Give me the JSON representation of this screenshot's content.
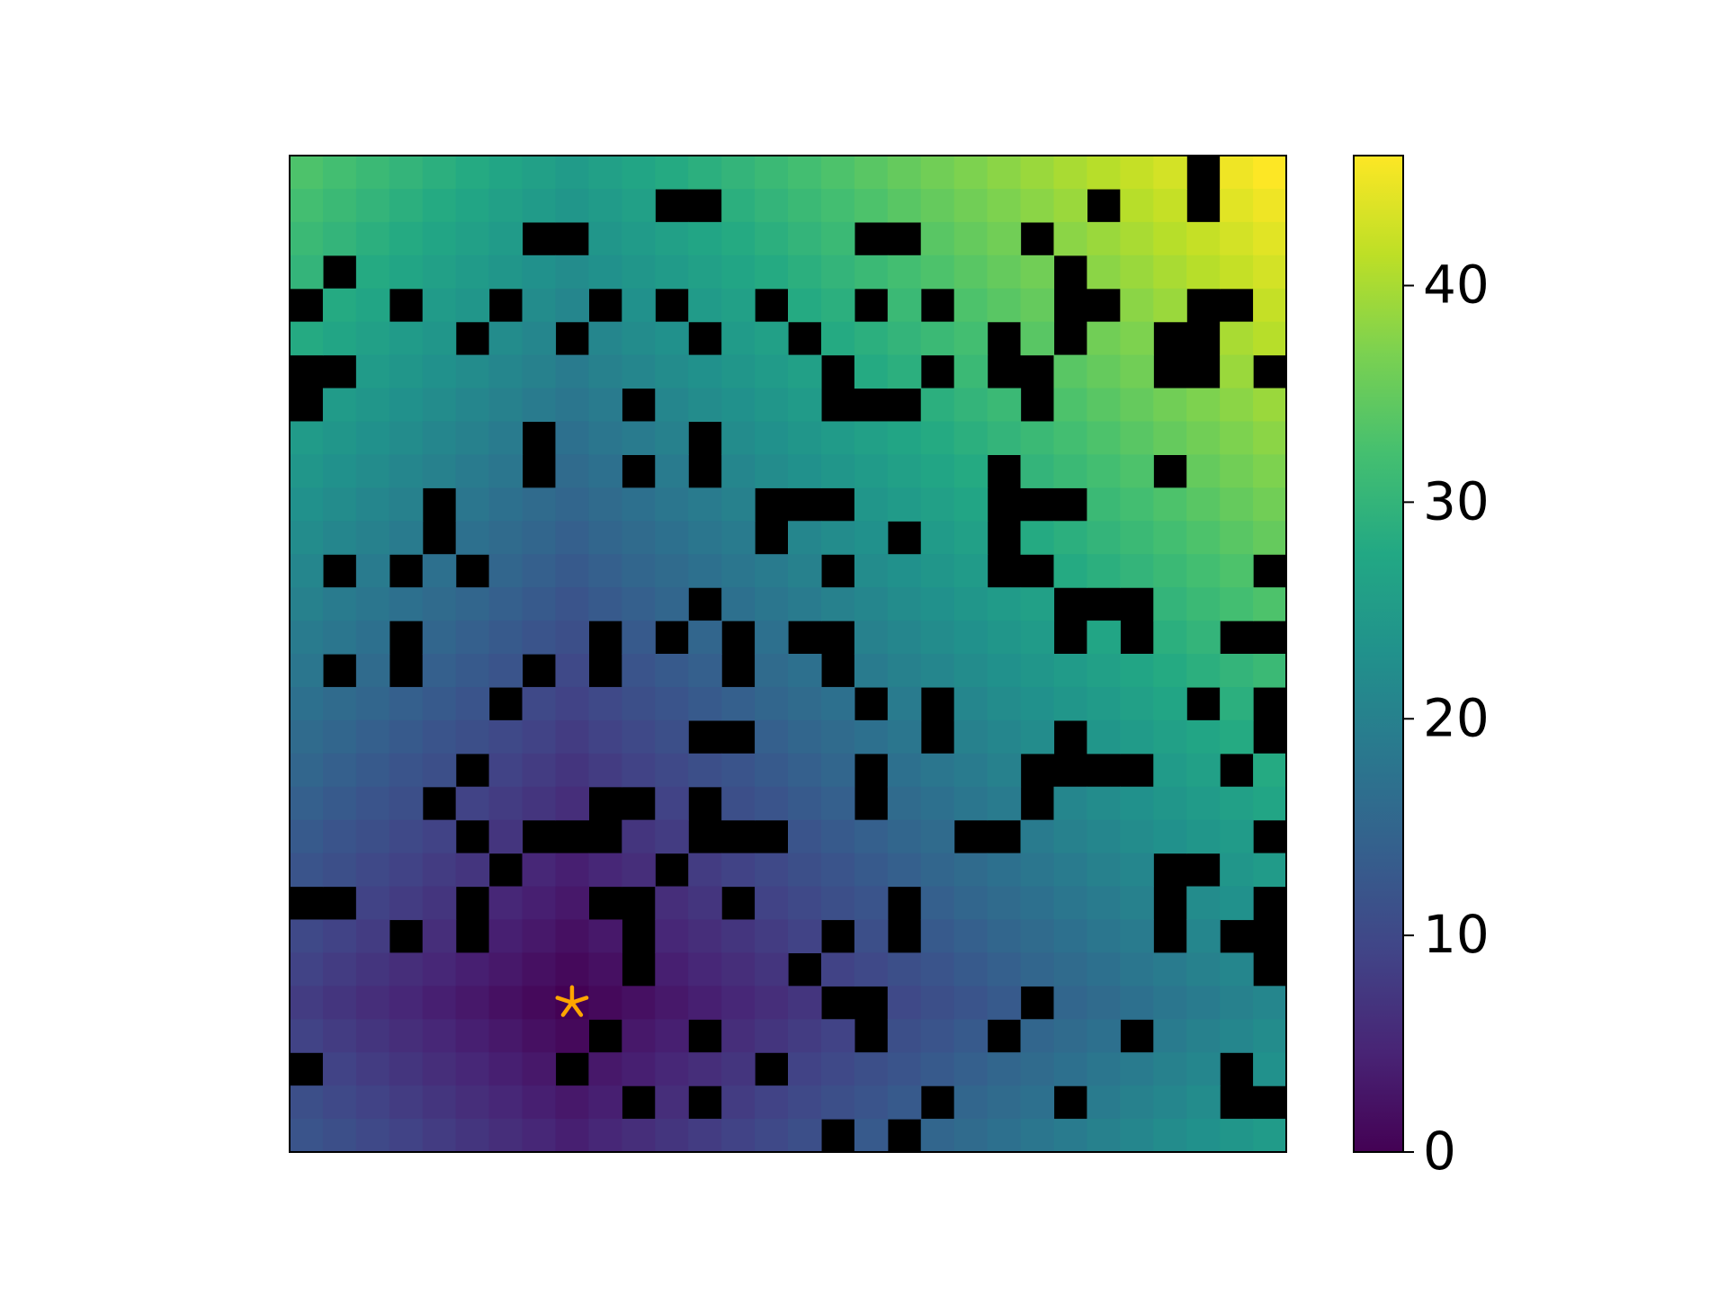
{
  "chart_data": {
    "type": "heatmap",
    "colormap": "viridis",
    "obstacle_color": "#000000",
    "clim": [
      0,
      46
    ],
    "cticks": [
      0,
      10,
      20,
      30,
      40
    ],
    "marker": {
      "row": 25,
      "col": 8,
      "color": "#ffa500"
    },
    "z": [
      [
        33,
        32,
        31,
        30,
        29,
        28,
        27,
        26,
        25,
        26,
        27,
        28,
        29,
        30,
        31,
        32,
        33,
        34,
        35,
        36,
        37,
        38,
        39,
        40,
        41,
        42,
        43,
        null,
        45,
        46
      ],
      [
        32,
        31,
        30,
        29,
        28,
        27,
        26,
        25,
        24,
        25,
        26,
        null,
        null,
        29,
        30,
        31,
        32,
        33,
        34,
        35,
        36,
        37,
        38,
        39,
        null,
        41,
        42,
        null,
        44,
        45
      ],
      [
        31,
        30,
        29,
        28,
        27,
        26,
        25,
        null,
        null,
        24,
        25,
        26,
        27,
        28,
        29,
        30,
        31,
        null,
        null,
        34,
        35,
        36,
        null,
        38,
        39,
        40,
        41,
        42,
        43,
        44
      ],
      [
        30,
        null,
        28,
        27,
        26,
        25,
        24,
        23,
        22,
        23,
        24,
        25,
        26,
        27,
        28,
        29,
        30,
        31,
        32,
        33,
        34,
        35,
        36,
        null,
        38,
        39,
        40,
        41,
        42,
        43
      ],
      [
        null,
        28,
        27,
        null,
        25,
        24,
        null,
        22,
        21,
        null,
        23,
        null,
        25,
        26,
        null,
        28,
        29,
        null,
        31,
        null,
        33,
        34,
        35,
        null,
        null,
        38,
        39,
        null,
        null,
        42
      ],
      [
        28,
        27,
        26,
        25,
        24,
        null,
        22,
        21,
        null,
        21,
        22,
        23,
        null,
        25,
        26,
        null,
        28,
        29,
        30,
        31,
        32,
        null,
        34,
        null,
        36,
        37,
        null,
        null,
        40,
        41
      ],
      [
        null,
        null,
        25,
        24,
        23,
        22,
        21,
        20,
        19,
        20,
        21,
        22,
        23,
        24,
        25,
        26,
        null,
        28,
        29,
        null,
        31,
        null,
        null,
        34,
        35,
        36,
        null,
        null,
        39,
        null
      ],
      [
        null,
        25,
        24,
        23,
        22,
        21,
        20,
        19,
        18,
        19,
        null,
        21,
        22,
        23,
        24,
        25,
        null,
        null,
        null,
        29,
        30,
        31,
        null,
        33,
        34,
        35,
        36,
        37,
        38,
        39
      ],
      [
        25,
        24,
        23,
        22,
        21,
        20,
        19,
        null,
        17,
        18,
        19,
        20,
        null,
        22,
        23,
        24,
        25,
        26,
        27,
        28,
        29,
        30,
        31,
        32,
        33,
        34,
        35,
        36,
        37,
        38
      ],
      [
        24,
        23,
        22,
        21,
        20,
        19,
        18,
        null,
        16,
        17,
        null,
        19,
        null,
        21,
        22,
        23,
        24,
        25,
        26,
        27,
        28,
        null,
        30,
        31,
        32,
        33,
        null,
        35,
        36,
        37
      ],
      [
        23,
        22,
        21,
        20,
        null,
        18,
        17,
        16,
        15,
        16,
        17,
        18,
        19,
        20,
        null,
        null,
        null,
        24,
        25,
        26,
        27,
        null,
        null,
        null,
        31,
        32,
        33,
        34,
        35,
        36
      ],
      [
        22,
        21,
        20,
        19,
        null,
        17,
        16,
        15,
        14,
        15,
        16,
        17,
        18,
        19,
        null,
        21,
        22,
        23,
        null,
        25,
        26,
        null,
        28,
        29,
        30,
        31,
        32,
        33,
        34,
        35
      ],
      [
        21,
        null,
        19,
        null,
        17,
        null,
        15,
        14,
        13,
        14,
        15,
        16,
        17,
        18,
        19,
        20,
        null,
        22,
        23,
        24,
        25,
        null,
        null,
        28,
        29,
        30,
        31,
        32,
        33,
        null
      ],
      [
        20,
        19,
        18,
        17,
        16,
        15,
        14,
        13,
        12,
        13,
        14,
        15,
        null,
        17,
        18,
        19,
        20,
        21,
        22,
        23,
        24,
        25,
        26,
        null,
        null,
        null,
        30,
        31,
        32,
        33
      ],
      [
        19,
        18,
        17,
        null,
        15,
        14,
        13,
        12,
        11,
        null,
        13,
        null,
        15,
        null,
        17,
        null,
        null,
        20,
        21,
        22,
        23,
        24,
        25,
        null,
        27,
        null,
        29,
        30,
        null,
        null
      ],
      [
        18,
        null,
        16,
        null,
        14,
        13,
        12,
        null,
        10,
        null,
        12,
        13,
        14,
        null,
        16,
        17,
        null,
        19,
        20,
        21,
        22,
        23,
        24,
        25,
        26,
        27,
        28,
        29,
        30,
        31
      ],
      [
        17,
        16,
        15,
        14,
        13,
        12,
        null,
        10,
        9,
        10,
        11,
        12,
        13,
        14,
        15,
        16,
        17,
        null,
        19,
        null,
        21,
        22,
        23,
        24,
        25,
        26,
        27,
        null,
        29,
        null
      ],
      [
        16,
        15,
        14,
        13,
        12,
        11,
        10,
        9,
        8,
        9,
        10,
        11,
        null,
        null,
        14,
        15,
        16,
        17,
        18,
        null,
        20,
        21,
        22,
        null,
        24,
        25,
        26,
        27,
        28,
        null
      ],
      [
        15,
        14,
        13,
        12,
        11,
        null,
        9,
        8,
        7,
        8,
        9,
        10,
        11,
        12,
        13,
        14,
        15,
        null,
        17,
        18,
        19,
        20,
        null,
        null,
        null,
        null,
        25,
        26,
        null,
        28
      ],
      [
        14,
        13,
        12,
        11,
        null,
        9,
        8,
        7,
        6,
        null,
        null,
        9,
        null,
        11,
        12,
        13,
        14,
        null,
        16,
        17,
        18,
        19,
        null,
        21,
        22,
        23,
        24,
        25,
        26,
        27
      ],
      [
        13,
        12,
        11,
        10,
        9,
        null,
        7,
        null,
        null,
        null,
        7,
        8,
        null,
        null,
        null,
        12,
        13,
        14,
        15,
        16,
        null,
        null,
        19,
        20,
        21,
        22,
        23,
        24,
        25,
        null
      ],
      [
        12,
        11,
        10,
        9,
        8,
        7,
        null,
        5,
        4,
        5,
        6,
        null,
        8,
        9,
        10,
        11,
        12,
        13,
        14,
        15,
        16,
        17,
        18,
        19,
        20,
        21,
        null,
        null,
        24,
        25
      ],
      [
        null,
        null,
        9,
        8,
        7,
        null,
        5,
        4,
        3,
        null,
        null,
        6,
        7,
        null,
        9,
        10,
        11,
        12,
        null,
        14,
        15,
        16,
        17,
        18,
        19,
        20,
        null,
        22,
        23,
        null
      ],
      [
        10,
        9,
        8,
        null,
        6,
        null,
        4,
        3,
        2,
        3,
        null,
        5,
        6,
        7,
        8,
        9,
        null,
        11,
        null,
        13,
        14,
        15,
        16,
        17,
        18,
        19,
        null,
        21,
        null,
        null
      ],
      [
        9,
        8,
        7,
        6,
        5,
        4,
        3,
        2,
        1,
        2,
        null,
        4,
        5,
        6,
        7,
        null,
        9,
        10,
        11,
        12,
        13,
        14,
        15,
        16,
        17,
        18,
        19,
        20,
        21,
        null
      ],
      [
        8,
        7,
        6,
        5,
        4,
        3,
        2,
        1,
        0,
        1,
        2,
        3,
        4,
        5,
        6,
        7,
        null,
        null,
        10,
        11,
        12,
        13,
        null,
        15,
        16,
        17,
        18,
        19,
        20,
        21
      ],
      [
        9,
        8,
        7,
        6,
        5,
        4,
        3,
        2,
        1,
        null,
        3,
        4,
        null,
        6,
        7,
        8,
        9,
        null,
        11,
        12,
        13,
        null,
        15,
        16,
        17,
        null,
        19,
        20,
        21,
        22
      ],
      [
        null,
        9,
        8,
        7,
        6,
        5,
        4,
        3,
        null,
        3,
        4,
        5,
        6,
        7,
        null,
        9,
        10,
        11,
        12,
        13,
        14,
        15,
        16,
        17,
        18,
        19,
        20,
        21,
        null,
        23
      ],
      [
        11,
        10,
        9,
        8,
        7,
        6,
        5,
        4,
        3,
        4,
        null,
        6,
        null,
        8,
        9,
        10,
        11,
        12,
        13,
        null,
        15,
        16,
        17,
        null,
        19,
        20,
        21,
        22,
        null,
        null
      ],
      [
        12,
        11,
        10,
        9,
        8,
        7,
        6,
        5,
        4,
        5,
        6,
        7,
        8,
        9,
        10,
        11,
        null,
        13,
        null,
        15,
        16,
        17,
        18,
        19,
        20,
        21,
        22,
        23,
        24,
        25
      ]
    ]
  }
}
